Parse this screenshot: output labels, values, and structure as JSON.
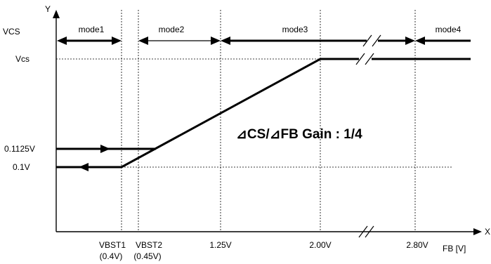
{
  "axes": {
    "y_letter": "Y",
    "x_letter": "X",
    "y_title": "VCS",
    "x_unit": "FB [V]"
  },
  "y_ticks": {
    "vcs": "Vcs",
    "v01125": "0.1125V",
    "v01": "0.1V"
  },
  "x_ticks": {
    "vbst1": "VBST1",
    "vbst1_val": "(0.4V)",
    "vbst2": "VBST2",
    "vbst2_val": "(0.45V)",
    "v125": "1.25V",
    "v200": "2.00V",
    "v280": "2.80V"
  },
  "modes": [
    "mode1",
    "mode2",
    "mode3",
    "mode4"
  ],
  "gain_label": "⊿CS/⊿FB Gain : 1/4"
}
